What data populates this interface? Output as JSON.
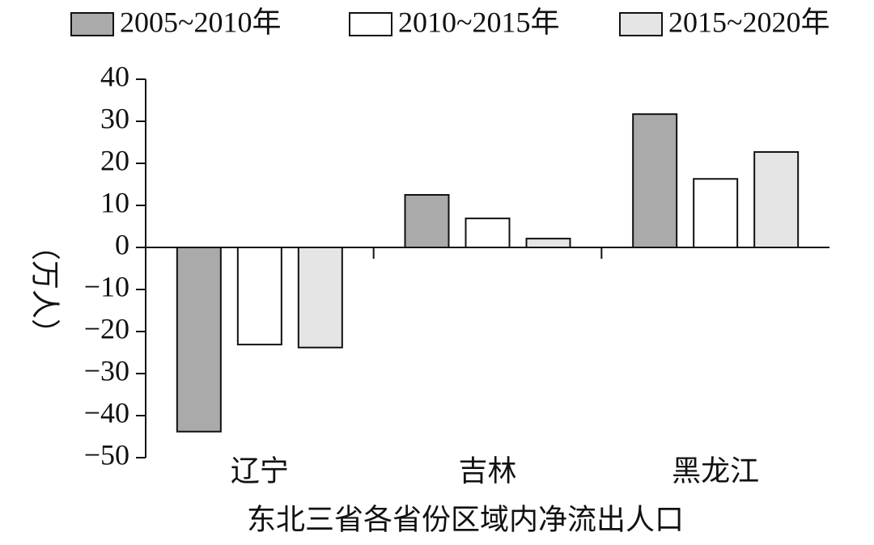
{
  "chart_data": {
    "type": "bar",
    "x_label": "东北三省各省份区域内净流出人口",
    "y_label": "（万人）",
    "categories": [
      "辽宁",
      "吉林",
      "黑龙江"
    ],
    "series": [
      {
        "name": "2005~2010年",
        "color": "#aaaaaa",
        "values": [
          -43.8,
          12.5,
          31.7
        ]
      },
      {
        "name": "2010~2015年",
        "color": "#ffffff",
        "values": [
          -23.1,
          6.9,
          16.3
        ]
      },
      {
        "name": "2015~2020年",
        "color": "#e5e5e5",
        "values": [
          -23.8,
          2.1,
          22.7
        ]
      }
    ],
    "ylim": [
      -50,
      40
    ],
    "yticks": [
      {
        "value": -50,
        "label": "−50"
      },
      {
        "value": -40,
        "label": "−40"
      },
      {
        "value": -30,
        "label": "−30"
      },
      {
        "value": -20,
        "label": "−20"
      },
      {
        "value": -10,
        "label": "−10"
      },
      0,
      10,
      20,
      30,
      40
    ],
    "legend": "top"
  }
}
